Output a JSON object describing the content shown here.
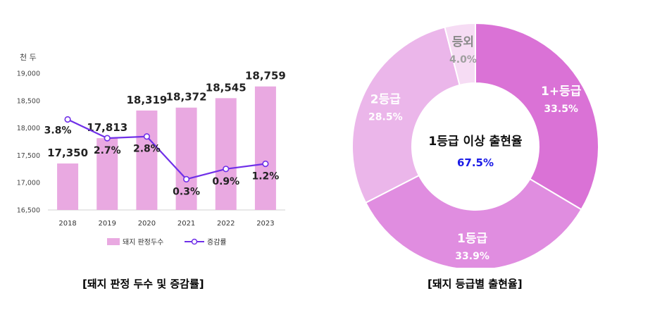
{
  "chart_data": [
    {
      "type": "bar",
      "unit_label": "천 두",
      "categories": [
        "2018",
        "2019",
        "2020",
        "2021",
        "2022",
        "2023"
      ],
      "ylim": [
        16500,
        19000
      ],
      "yticks": [
        "16,500",
        "17,000",
        "17,500",
        "18,000",
        "18,500",
        "19,000"
      ],
      "grid": false,
      "legend_position": "bottom",
      "series": [
        {
          "name": "돼지 판정두수",
          "type": "bar",
          "color": "#e9a9e1",
          "values": [
            17350,
            17813,
            18319,
            18372,
            18545,
            18759
          ],
          "labels": [
            "17,350",
            "17,813",
            "18,319",
            "18,372",
            "18,545",
            "18,759"
          ]
        },
        {
          "name": "증감률",
          "type": "line",
          "color": "#7030e8",
          "values": [
            3.8,
            2.7,
            2.8,
            0.3,
            0.9,
            1.2
          ],
          "labels": [
            "3.8%",
            "2.7%",
            "2.8%",
            "0.3%",
            "0.9%",
            "1.2%"
          ]
        }
      ],
      "caption": "[돼지 판정 두수 및 증감률]"
    },
    {
      "type": "pie",
      "variant": "donut",
      "center_title": "1등급 이상 출현율",
      "center_value": "67.5%",
      "center_value_color": "#1a1ae6",
      "slices": [
        {
          "label": "1+등급",
          "value": 33.5,
          "pct": "33.5%",
          "color": "#da72d6",
          "label_color": "#ffffff",
          "value_color": "#ffffff"
        },
        {
          "label": "1등급",
          "value": 33.9,
          "pct": "33.9%",
          "color": "#e08de0",
          "label_color": "#ffffff",
          "value_color": "#ffffff"
        },
        {
          "label": "2등급",
          "value": 28.5,
          "pct": "28.5%",
          "color": "#ebb6ea",
          "label_color": "#ffffff",
          "value_color": "#ffffff"
        },
        {
          "label": "등외",
          "value": 4.0,
          "pct": "4.0%",
          "color": "#f6dcf4",
          "label_color": "#8a8a8a",
          "value_color": "#a0a0a0"
        }
      ],
      "caption": "[돼지 등급별 출현율]"
    }
  ]
}
